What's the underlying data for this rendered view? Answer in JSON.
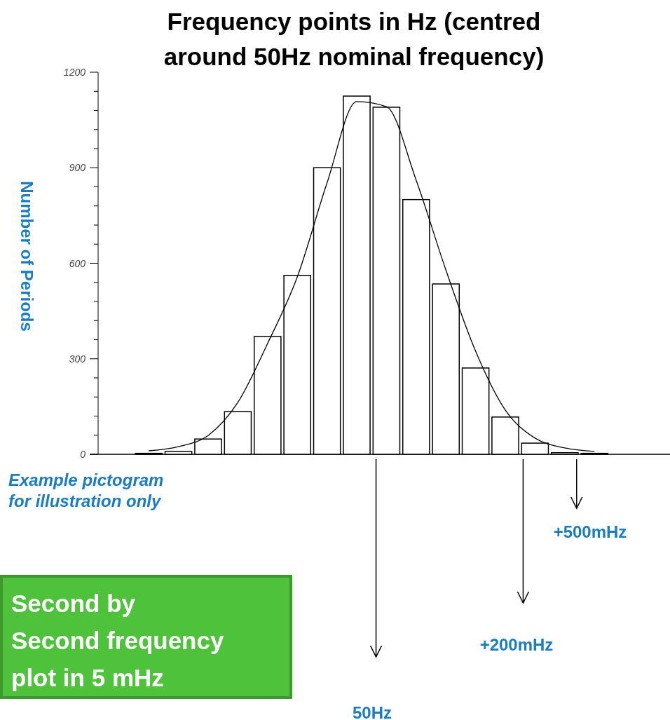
{
  "chart_data": {
    "type": "bar",
    "title": "Frequency points in Hz (centred around 50Hz nominal frequency)",
    "ylabel": "Number of Periods",
    "categories": [
      null,
      null,
      null,
      null,
      null,
      null,
      null,
      null,
      null,
      null,
      null,
      null,
      null,
      null,
      null,
      null
    ],
    "series": [
      {
        "color": "#ffffff",
        "values": [
          3,
          9,
          48,
          134,
          370,
          562,
          900,
          1125,
          1090,
          800,
          535,
          271,
          117,
          35,
          5,
          3
        ]
      },
      {
        "type": "line",
        "color": "#000000",
        "values": [
          11,
          24,
          59,
          163,
          348,
          557,
          852,
          1108,
          1092,
          861,
          579,
          324,
          139,
          51,
          20,
          9
        ]
      }
    ],
    "ylim": [
      0,
      1200
    ],
    "yticks": [
      0,
      300,
      600,
      900,
      1200
    ],
    "grid": false,
    "annotations": [
      "Example pictogram\nfor illustration only",
      "50Hz",
      "+200mHz",
      "+500mHz",
      "Second by\nSecond frequency\nplot in 5 mHz"
    ]
  }
}
